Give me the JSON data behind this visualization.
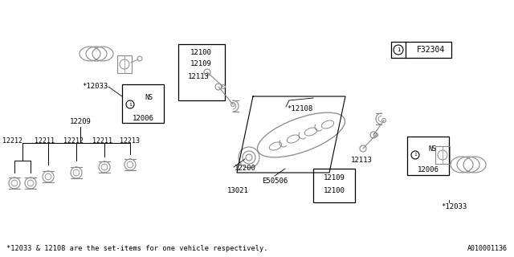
{
  "footnote": "*12033 & 12108 are the set-items for one vehicle respectively.",
  "diagram_id": "F32304",
  "drawing_id": "A010001136",
  "bg_color": "#ffffff",
  "line_color": "#000000",
  "text_color": "#000000",
  "gray_color": "#888888",
  "font_size": 6.5,
  "fig_width": 6.4,
  "fig_height": 3.2,
  "dpi": 100
}
